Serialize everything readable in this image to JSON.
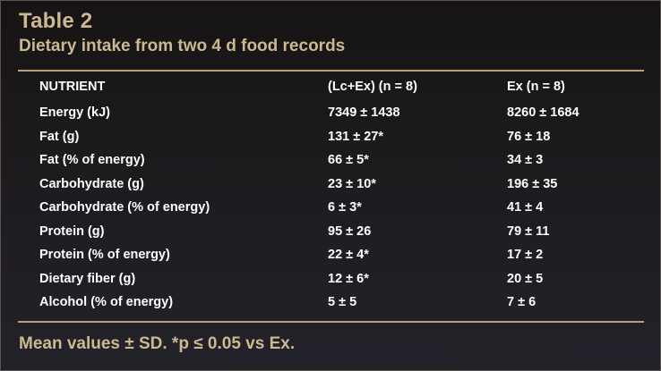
{
  "title": "Table 2",
  "subtitle": "Dietary intake from two 4 d food records",
  "table": {
    "headers": [
      "NUTRIENT",
      "(Lc+Ex) (n = 8)",
      "Ex (n = 8)"
    ],
    "rows": [
      [
        "Energy (kJ)",
        "7349 ± 1438",
        "8260 ± 1684"
      ],
      [
        "Fat (g)",
        "131 ± 27*",
        "76 ± 18"
      ],
      [
        "Fat (% of energy)",
        "66 ± 5*",
        "34 ± 3"
      ],
      [
        "Carbohydrate (g)",
        "23 ± 10*",
        "196 ± 35"
      ],
      [
        "Carbohydrate (% of energy)",
        "6 ± 3*",
        "41 ± 4"
      ],
      [
        "Protein (g)",
        "95 ± 26",
        "79 ± 11"
      ],
      [
        "Protein (% of energy)",
        "22 ± 4*",
        "17 ± 2"
      ],
      [
        "Dietary fiber (g)",
        "12 ± 6*",
        "20 ± 5"
      ],
      [
        "Alcohol (% of energy)",
        "5 ± 5",
        "7 ± 6"
      ]
    ]
  },
  "footer": "Mean values ± SD. *p ≤ 0.05 vs Ex.",
  "colors": {
    "accent": "#ccb98f",
    "rule": "#b5a27c",
    "text": "#ffffff",
    "background": "#1d1b1e"
  }
}
